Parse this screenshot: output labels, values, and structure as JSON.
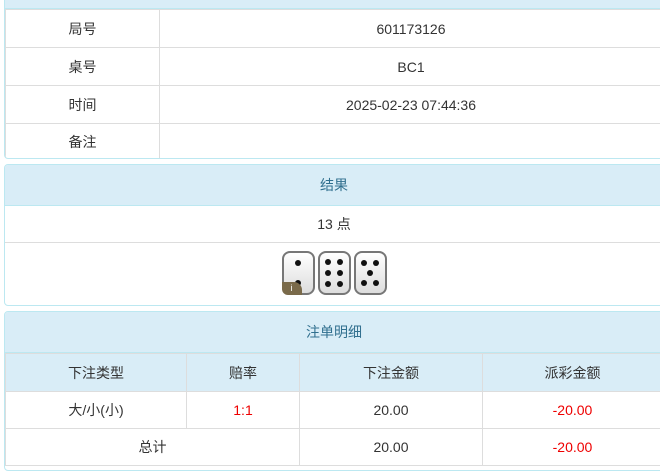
{
  "info": {
    "rows": [
      {
        "label": "局号",
        "value": "601173126"
      },
      {
        "label": "桌号",
        "value": "BC1"
      },
      {
        "label": "时间",
        "value": "2025-02-23 07:44:36"
      },
      {
        "label": "备注",
        "value": ""
      }
    ]
  },
  "result": {
    "title": "结果",
    "points": "13 点",
    "dice": [
      2,
      6,
      5
    ],
    "info_badge": "i"
  },
  "bets": {
    "title": "注单明细",
    "headers": [
      "下注类型",
      "赔率",
      "下注金额",
      "派彩金额"
    ],
    "rows": [
      {
        "type": "大/小(小)",
        "odds": "1:1",
        "amount": "20.00",
        "payout": "-20.00"
      }
    ],
    "total": {
      "label": "总计",
      "amount": "20.00",
      "payout": "-20.00"
    }
  },
  "colors": {
    "header_bg": "#d9edf7",
    "header_text": "#31708f",
    "negative": "#ee0000"
  }
}
